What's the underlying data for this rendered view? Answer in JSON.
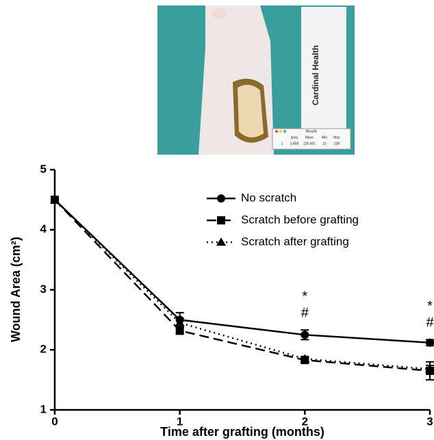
{
  "photo": {
    "ruler_label": "Cardinal Health",
    "results_title": "Results",
    "results_header": [
      "Area",
      "Mean",
      "Min",
      "Max"
    ],
    "results_row": [
      "1",
      "3.458",
      "126.451",
      "10",
      "238"
    ]
  },
  "chart_data": {
    "type": "line",
    "x_label": "Time after grafting (months)",
    "y_label": "Wound Area (cm²)",
    "x": [
      0,
      1,
      2,
      3
    ],
    "xlim": [
      0,
      3
    ],
    "xticks": [
      0,
      1,
      2,
      3
    ],
    "ylim": [
      1,
      5
    ],
    "yticks": [
      1,
      2,
      3,
      4,
      5
    ],
    "series": [
      {
        "name": "No scratch",
        "color": "#000000",
        "dash": "solid",
        "marker": "circle",
        "values": [
          4.5,
          2.5,
          2.25,
          2.12
        ],
        "errors": [
          0.03,
          0.12,
          0.08,
          0.05
        ]
      },
      {
        "name": "Scratch before grafting",
        "color": "#000000",
        "dash": "dashed",
        "marker": "square",
        "values": [
          4.5,
          2.32,
          1.83,
          1.65
        ],
        "errors": [
          0.03,
          0.06,
          0.04,
          0.15
        ]
      },
      {
        "name": "Scratch after grafting",
        "color": "#000000",
        "dash": "dotted",
        "marker": "triangle",
        "values": [
          4.5,
          2.45,
          1.85,
          1.68
        ],
        "errors": [
          0.03,
          0.08,
          0.04,
          0.06
        ]
      }
    ],
    "annotations": [
      {
        "text": "*",
        "x": 2
      },
      {
        "text": "#",
        "x": 2
      },
      {
        "text": "*",
        "x": 3
      },
      {
        "text": "#",
        "x": 3
      }
    ]
  }
}
